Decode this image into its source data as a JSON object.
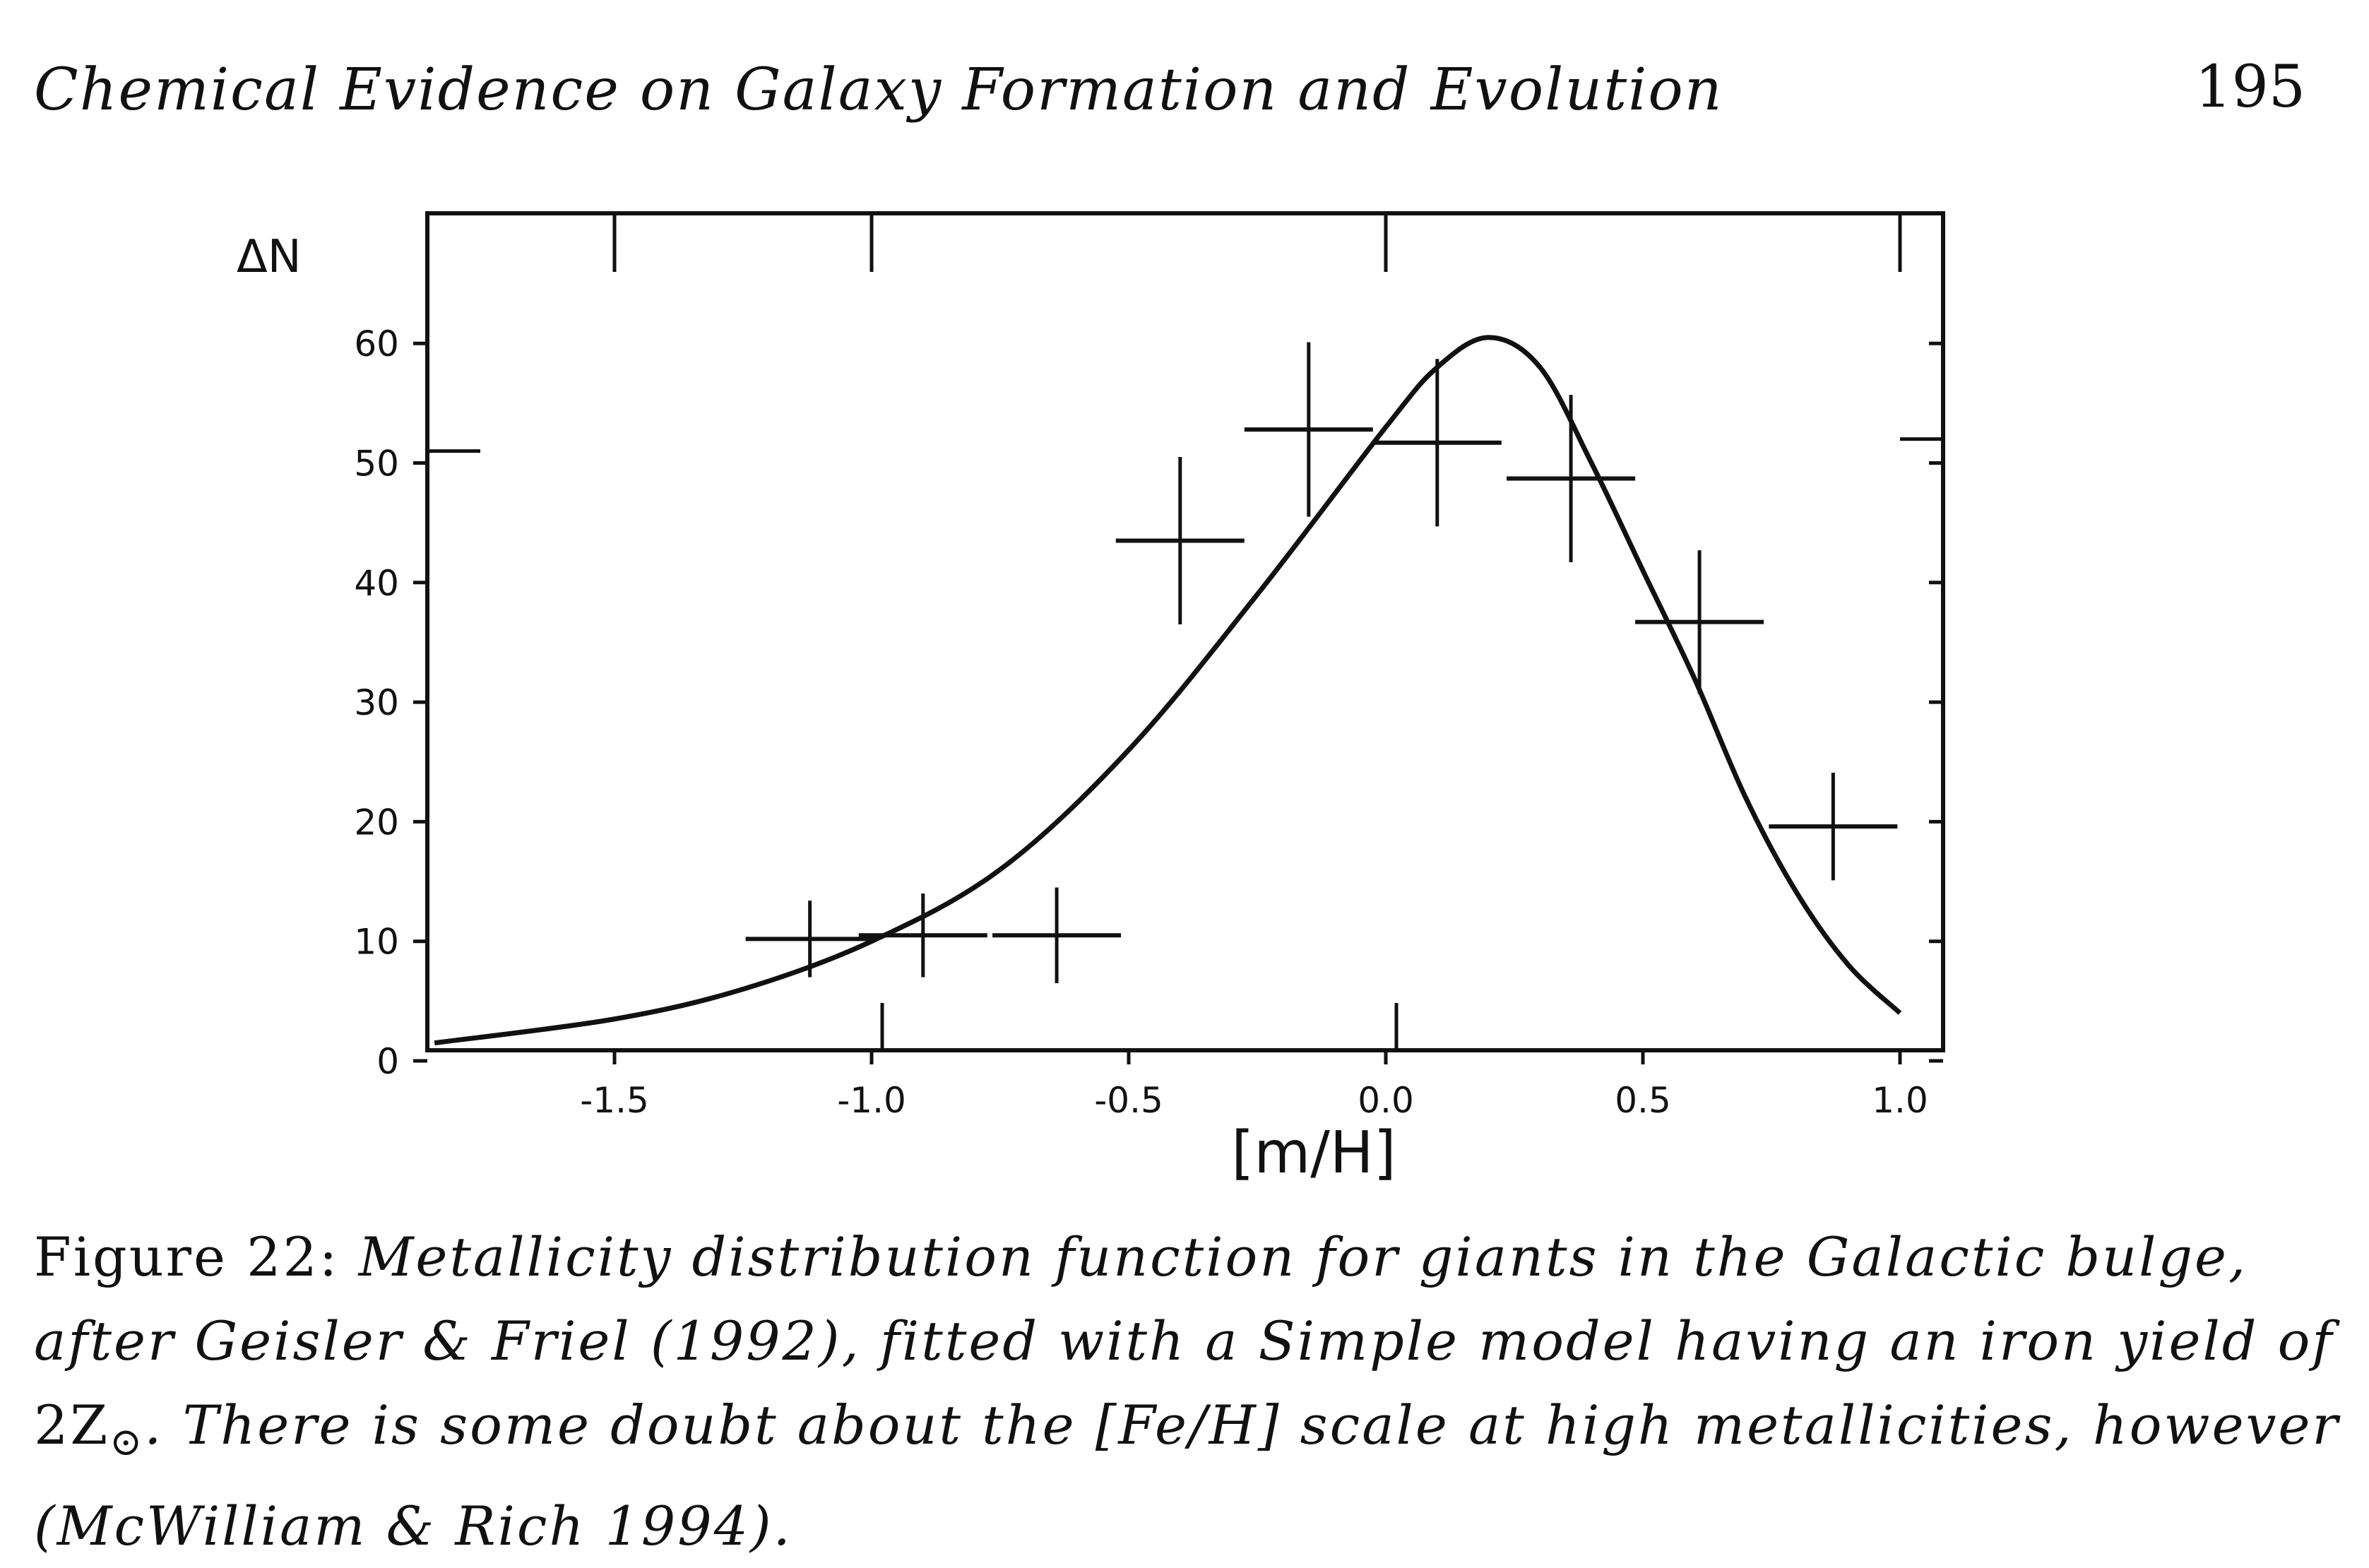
{
  "header": {
    "running_title": "Chemical Evidence on Galaxy Formation and Evolution",
    "page_number": "195"
  },
  "chart_data": {
    "type": "scatter",
    "xlabel": "[m/H]",
    "ylabel": "ΔN",
    "xlim": [
      -1.85,
      1.1
    ],
    "ylim": [
      0,
      70
    ],
    "xticks": [
      -1.5,
      -1.0,
      -0.5,
      0.0,
      0.5,
      1.0
    ],
    "xtick_labels": [
      "-1.5",
      "-1.0",
      "-0.5",
      "0.0",
      "0.5",
      "1.0"
    ],
    "yticks": [
      0,
      10,
      20,
      30,
      40,
      50,
      60
    ],
    "ytick_labels": [
      "0",
      "10",
      "20",
      "30",
      "40",
      "50",
      "60"
    ],
    "grid": false,
    "points": [
      {
        "x": -1.12,
        "y": 10.2,
        "xerr": 0.125,
        "yerr": 3.2
      },
      {
        "x": -0.9,
        "y": 10.5,
        "xerr": 0.125,
        "yerr": 3.5
      },
      {
        "x": -0.64,
        "y": 10.5,
        "xerr": 0.125,
        "yerr": 4.0
      },
      {
        "x": -0.4,
        "y": 43.5,
        "xerr": 0.125,
        "yerr": 7.0
      },
      {
        "x": -0.15,
        "y": 52.8,
        "xerr": 0.125,
        "yerr": 7.3
      },
      {
        "x": 0.1,
        "y": 51.7,
        "xerr": 0.125,
        "yerr": 7.0
      },
      {
        "x": 0.36,
        "y": 48.7,
        "xerr": 0.125,
        "yerr": 7.0
      },
      {
        "x": 0.61,
        "y": 36.7,
        "xerr": 0.125,
        "yerr": 6.0
      },
      {
        "x": 0.87,
        "y": 19.6,
        "xerr": 0.125,
        "yerr": 4.5
      }
    ],
    "model_curve": {
      "x": [
        -1.85,
        -1.5,
        -1.25,
        -1.0,
        -0.75,
        -0.5,
        -0.25,
        0.0,
        0.1,
        0.2,
        0.3,
        0.4,
        0.5,
        0.6,
        0.7,
        0.8,
        0.9,
        1.0
      ],
      "y": [
        1.5,
        3.5,
        6,
        10,
        16,
        26,
        39,
        53,
        58,
        60.5,
        58,
        50,
        41,
        32,
        22,
        14,
        8,
        4
      ]
    }
  },
  "caption": {
    "label": "Figure 22:",
    "text1": " Metallicity distribution function for giants in the Galactic bulge, after Geisler & Friel (1992), fitted with a Simple model having an iron yield of ",
    "yield": "2Z",
    "sun_symbol": "⊙",
    "text2": ". There is some doubt about the [Fe/H] scale at high metallicities, however (McWilliam & Rich 1994)."
  }
}
